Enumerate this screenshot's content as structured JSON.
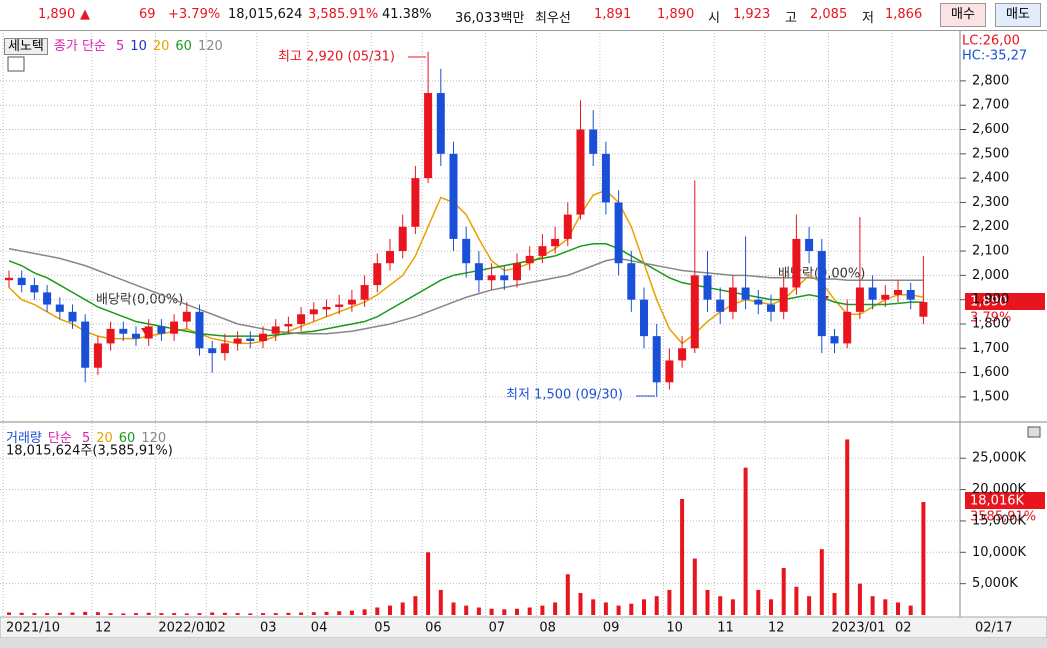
{
  "header": {
    "items": [
      "1,890",
      "▲",
      "69",
      "+3.79%",
      "18,015,624",
      "3,585.91%",
      "41.38%",
      "36,033백만",
      "최우선",
      "1,891",
      "1,890",
      "시",
      "1,923",
      "고",
      "2,085",
      "저",
      "1,866"
    ],
    "buttons": [
      "매수",
      "매도"
    ]
  },
  "chart_data": [
    {
      "type": "candlestick",
      "name": "세노텍",
      "legend_title": "종가 단순",
      "legend": [
        {
          "name": "5",
          "color": "#d81fb4"
        },
        {
          "name": "10",
          "color": "#2030c8"
        },
        {
          "name": "20",
          "color": "#e8a000"
        },
        {
          "name": "60",
          "color": "#1a9a1a"
        },
        {
          "name": "120",
          "color": "#888888"
        }
      ],
      "lc": "LC:26,00",
      "hc": "HC:-35,27",
      "annotations": [
        "최고 2,920 (05/31)",
        "최저 1,500 (09/30)",
        "배당락(0,00%)",
        "배당락(0,00%)"
      ],
      "last_label": "1,890",
      "change_label": "3.79%",
      "up_color": "#e8141e",
      "down_color": "#1a4fd8",
      "open": [
        1980,
        1990,
        1960,
        1930,
        1880,
        1850,
        1810,
        1620,
        1720,
        1780,
        1760,
        1740,
        1790,
        1760,
        1810,
        1850,
        1700,
        1680,
        1720,
        1740,
        1730,
        1760,
        1790,
        1800,
        1840,
        1860,
        1870,
        1880,
        1900,
        1960,
        2050,
        2100,
        2200,
        2400,
        2750,
        2500,
        2150,
        2050,
        1980,
        2000,
        1980,
        2050,
        2080,
        2120,
        2150,
        2250,
        2600,
        2500,
        2300,
        2050,
        1900,
        1750,
        1560,
        1650,
        1700,
        2000,
        1900,
        1850,
        1950,
        1900,
        1880,
        1850,
        1950,
        2150,
        2100,
        1750,
        1720,
        1850,
        1950,
        1900,
        1920,
        1940,
        1830
      ],
      "high": [
        2020,
        2020,
        1990,
        1960,
        1910,
        1880,
        1840,
        1750,
        1810,
        1810,
        1790,
        1820,
        1820,
        1840,
        1890,
        1880,
        1730,
        1760,
        1770,
        1770,
        1790,
        1820,
        1830,
        1870,
        1890,
        1900,
        1920,
        1940,
        2000,
        2090,
        2150,
        2250,
        2450,
        2920,
        2850,
        2550,
        2200,
        2100,
        2050,
        2040,
        2090,
        2120,
        2170,
        2200,
        2300,
        2720,
        2680,
        2550,
        2350,
        2100,
        1950,
        1800,
        1700,
        1750,
        2390,
        2100,
        1950,
        2000,
        2160,
        1940,
        1920,
        2000,
        2250,
        2200,
        2150,
        1780,
        1900,
        2240,
        2000,
        1960,
        1980,
        1970,
        2080
      ],
      "low": [
        1950,
        1930,
        1900,
        1850,
        1820,
        1780,
        1560,
        1590,
        1690,
        1730,
        1710,
        1710,
        1730,
        1730,
        1780,
        1670,
        1600,
        1650,
        1690,
        1700,
        1700,
        1730,
        1760,
        1770,
        1810,
        1830,
        1840,
        1850,
        1870,
        1930,
        2020,
        2070,
        2170,
        2380,
        2450,
        2100,
        1990,
        1930,
        1940,
        1940,
        1950,
        2020,
        2050,
        2090,
        2120,
        2230,
        2450,
        2250,
        2000,
        1850,
        1700,
        1500,
        1530,
        1620,
        1680,
        1850,
        1800,
        1820,
        1860,
        1840,
        1810,
        1820,
        1920,
        2050,
        1680,
        1680,
        1700,
        1820,
        1860,
        1870,
        1890,
        1860,
        1800
      ],
      "close": [
        1990,
        1960,
        1930,
        1880,
        1850,
        1810,
        1620,
        1720,
        1780,
        1760,
        1740,
        1790,
        1760,
        1810,
        1850,
        1700,
        1680,
        1720,
        1740,
        1730,
        1760,
        1790,
        1800,
        1840,
        1860,
        1870,
        1880,
        1900,
        1960,
        2050,
        2100,
        2200,
        2400,
        2750,
        2500,
        2150,
        2050,
        1980,
        2000,
        1980,
        2050,
        2080,
        2120,
        2150,
        2250,
        2600,
        2500,
        2300,
        2050,
        1900,
        1750,
        1560,
        1650,
        1700,
        2000,
        1900,
        1850,
        1950,
        1900,
        1880,
        1850,
        1950,
        2150,
        2100,
        1750,
        1720,
        1850,
        1950,
        1900,
        1920,
        1940,
        1900,
        1890
      ],
      "series": [
        {
          "color": "#e8a000",
          "values": [
            1950,
            1900,
            1880,
            1850,
            1820,
            1800,
            1770,
            1750,
            1740,
            1740,
            1740,
            1750,
            1760,
            1770,
            1780,
            1760,
            1740,
            1730,
            1720,
            1720,
            1730,
            1750,
            1770,
            1790,
            1810,
            1830,
            1850,
            1870,
            1890,
            1920,
            1960,
            2000,
            2080,
            2200,
            2320,
            2300,
            2250,
            2150,
            2060,
            2020,
            2030,
            2050,
            2080,
            2110,
            2150,
            2250,
            2330,
            2350,
            2300,
            2200,
            2050,
            1900,
            1780,
            1720,
            1760,
            1810,
            1850,
            1880,
            1900,
            1890,
            1880,
            1900,
            1950,
            2000,
            1970,
            1900,
            1840,
            1840,
            1870,
            1900,
            1920,
            1920,
            1910
          ]
        },
        {
          "color": "#1a9a1a",
          "values": [
            2060,
            2040,
            2010,
            1990,
            1960,
            1930,
            1900,
            1870,
            1850,
            1830,
            1810,
            1800,
            1790,
            1780,
            1770,
            1760,
            1755,
            1750,
            1750,
            1750,
            1750,
            1755,
            1760,
            1765,
            1770,
            1780,
            1790,
            1800,
            1810,
            1830,
            1860,
            1890,
            1920,
            1950,
            1980,
            2000,
            2010,
            2020,
            2030,
            2040,
            2050,
            2060,
            2070,
            2080,
            2100,
            2120,
            2130,
            2130,
            2110,
            2080,
            2050,
            2020,
            1990,
            1970,
            1960,
            1950,
            1940,
            1930,
            1920,
            1910,
            1900,
            1900,
            1910,
            1920,
            1910,
            1890,
            1880,
            1880,
            1880,
            1880,
            1885,
            1890,
            1890
          ]
        },
        {
          "color": "#888888",
          "values": [
            2110,
            2100,
            2090,
            2080,
            2070,
            2055,
            2040,
            2020,
            2000,
            1980,
            1960,
            1940,
            1920,
            1900,
            1880,
            1860,
            1840,
            1820,
            1800,
            1790,
            1780,
            1770,
            1765,
            1760,
            1760,
            1760,
            1765,
            1770,
            1780,
            1790,
            1800,
            1815,
            1830,
            1850,
            1870,
            1890,
            1910,
            1925,
            1940,
            1950,
            1960,
            1970,
            1980,
            1990,
            2000,
            2020,
            2040,
            2060,
            2070,
            2060,
            2050,
            2040,
            2030,
            2020,
            2015,
            2010,
            2005,
            2000,
            2000,
            1995,
            1990,
            1990,
            1990,
            1990,
            1985,
            1985,
            1980,
            1980,
            1980,
            1980,
            1980,
            1980,
            1980
          ]
        }
      ],
      "ylim": [
        1405,
        2997
      ],
      "yticks": [
        {
          "value": 1500,
          "label": "1,500"
        },
        {
          "value": 1600,
          "label": "1,600"
        },
        {
          "value": 1700,
          "label": "1,700"
        },
        {
          "value": 1800,
          "label": "1,800"
        },
        {
          "value": 1900,
          "label": "1,900"
        },
        {
          "value": 2000,
          "label": "2,000"
        },
        {
          "value": 2100,
          "label": "2,100"
        },
        {
          "value": 2200,
          "label": "2,200"
        },
        {
          "value": 2300,
          "label": "2,300"
        },
        {
          "value": 2400,
          "label": "2,400"
        },
        {
          "value": 2500,
          "label": "2,500"
        },
        {
          "value": 2600,
          "label": "2,600"
        },
        {
          "value": 2700,
          "label": "2,700"
        },
        {
          "value": 2800,
          "label": "2,800"
        }
      ],
      "grid": true
    },
    {
      "type": "bar",
      "name": "거래량",
      "legend_title": "단순",
      "legend": [
        {
          "name": "5",
          "color": "#d81fb4"
        },
        {
          "name": "20",
          "color": "#e8a000"
        },
        {
          "name": "60",
          "color": "#1a9a1a"
        },
        {
          "name": "120",
          "color": "#888888"
        }
      ],
      "subtitle": "18,015,624주(3,585,91%)",
      "last_label": "18,016K",
      "change_label": "3585,91%",
      "x_end_label": "02/17",
      "color": "#e8141e",
      "categories": [
        "2021/10",
        null,
        null,
        null,
        null,
        null,
        null,
        "12",
        null,
        null,
        null,
        null,
        "2022/01",
        null,
        null,
        null,
        "02",
        null,
        null,
        null,
        "03",
        null,
        null,
        null,
        "04",
        null,
        null,
        null,
        null,
        "05",
        null,
        null,
        null,
        "06",
        null,
        null,
        null,
        null,
        "07",
        null,
        null,
        null,
        "08",
        null,
        null,
        null,
        null,
        "09",
        null,
        null,
        null,
        null,
        "10",
        null,
        null,
        null,
        "11",
        null,
        null,
        null,
        "12",
        null,
        null,
        null,
        null,
        "2023/01",
        null,
        null,
        null,
        null,
        "02",
        null,
        null
      ],
      "values": [
        400,
        350,
        300,
        300,
        350,
        400,
        500,
        450,
        300,
        250,
        300,
        350,
        300,
        300,
        250,
        300,
        400,
        350,
        300,
        250,
        300,
        300,
        350,
        400,
        450,
        500,
        600,
        700,
        900,
        1200,
        1500,
        2000,
        3000,
        10000,
        4000,
        2000,
        1500,
        1200,
        1000,
        900,
        1000,
        1200,
        1500,
        2000,
        6500,
        3500,
        2500,
        2000,
        1500,
        1800,
        2500,
        3000,
        4000,
        18500,
        9000,
        4000,
        3000,
        2500,
        23500,
        4000,
        2500,
        7500,
        4500,
        3000,
        10500,
        3500,
        28000,
        5000,
        3000,
        2500,
        2000,
        1500,
        18016
      ],
      "ylim": [
        0,
        30300
      ],
      "yticks": [
        {
          "value": 5000,
          "label": "5,000K"
        },
        {
          "value": 10000,
          "label": "10,000K"
        },
        {
          "value": 15000,
          "label": "15,000K"
        },
        {
          "value": 20000,
          "label": "20,000K"
        },
        {
          "value": 25000,
          "label": "25,000K"
        }
      ],
      "grid": true
    }
  ]
}
